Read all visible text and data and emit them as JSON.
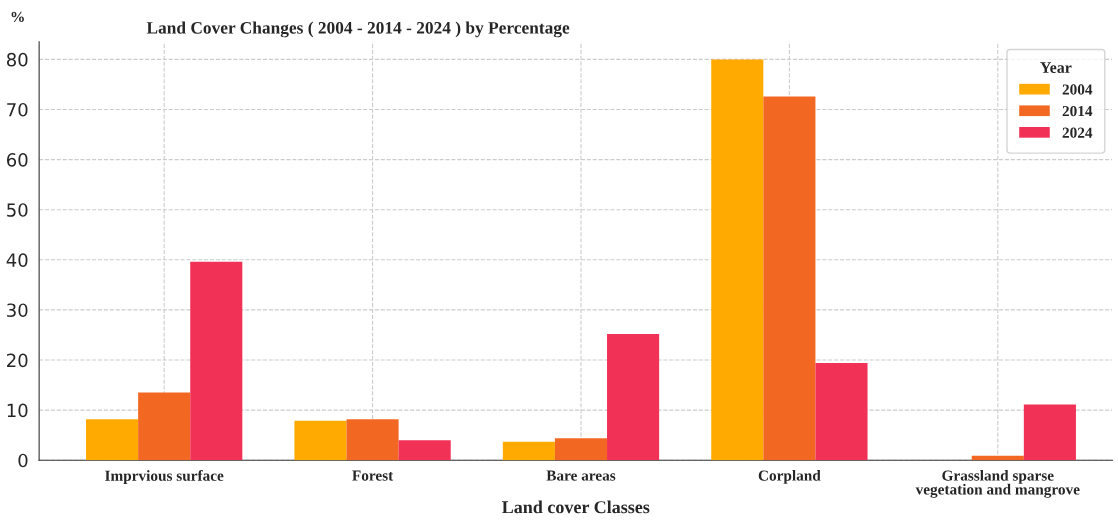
{
  "chart_data": {
    "type": "bar",
    "title": "Land Cover Changes ( 2004 - 2014 - 2024 ) by Percentage",
    "xlabel": "Land cover Classes",
    "ylabel": "%",
    "legend_title": "Year",
    "categories": [
      "Imprvious surface",
      "Forest",
      "Bare areas",
      "Corpland",
      "Grassland sparse\nvegetation and mangrove"
    ],
    "series": [
      {
        "name": "2004",
        "color": "#ffaa00",
        "values": [
          8.2,
          7.9,
          3.7,
          80,
          0
        ]
      },
      {
        "name": "2014",
        "color": "#f26822",
        "values": [
          13.5,
          8.2,
          4.4,
          72.6,
          0.9
        ]
      },
      {
        "name": "2024",
        "color": "#f23157",
        "values": [
          39.6,
          4.0,
          25.2,
          19.4,
          11.1
        ]
      }
    ],
    "ylim": [
      0,
      83.5
    ],
    "yticks": [
      0,
      10,
      20,
      30,
      40,
      50,
      60,
      70,
      80
    ],
    "grid": true,
    "legend": "top right"
  }
}
